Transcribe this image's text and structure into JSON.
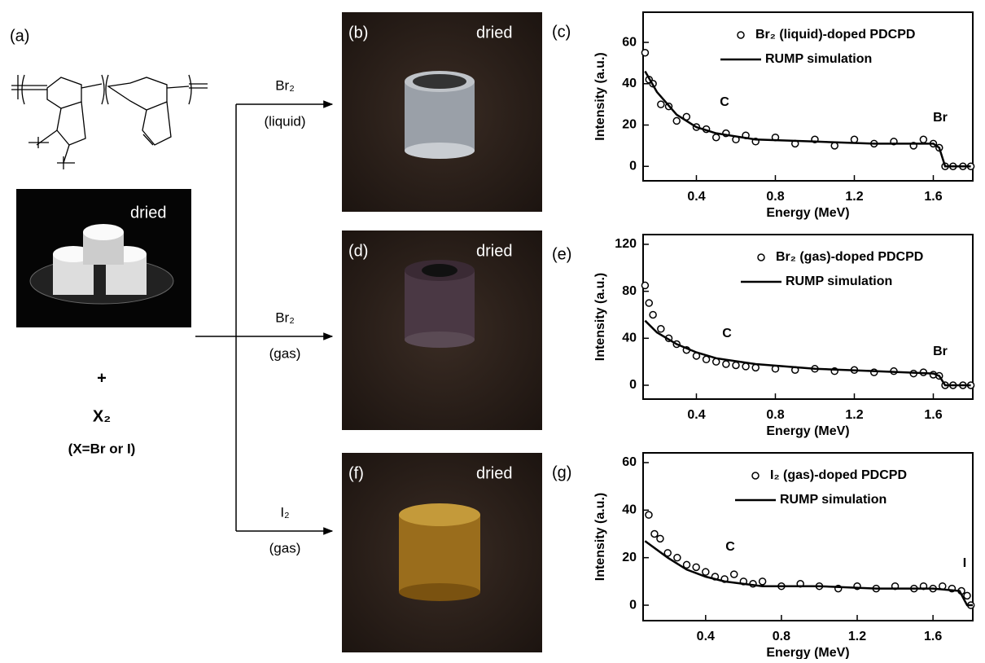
{
  "figure": {
    "panel_a": {
      "label": "(a)",
      "photo_text": "dried",
      "plus": "+",
      "reagent": "X₂",
      "reagent_note": "(X=Br or I)"
    },
    "arrows": [
      {
        "reagent": "Br₂",
        "phase": "(liquid)"
      },
      {
        "reagent": "Br₂",
        "phase": "(gas)"
      },
      {
        "reagent": "I₂",
        "phase": "(gas)"
      }
    ],
    "photos": [
      {
        "label": "(b)",
        "text": "dried"
      },
      {
        "label": "(d)",
        "text": "dried"
      },
      {
        "label": "(f)",
        "text": "dried"
      }
    ]
  },
  "chart_data": [
    {
      "type": "scatter",
      "panel_label": "(c)",
      "xlabel": "Energy (MeV)",
      "ylabel": "Intensity (a.u.)",
      "xlim": [
        0.13,
        1.8
      ],
      "ylim": [
        -7,
        74.6
      ],
      "xticks": [
        0.4,
        0.8,
        1.2,
        1.6
      ],
      "yticks": [
        0,
        20,
        40,
        60
      ],
      "legend": "upper right",
      "series": [
        {
          "name": "Br₂ (liquid)-doped PDCPD",
          "marker": "open-circle",
          "color": "#000000",
          "x": [
            0.14,
            0.16,
            0.18,
            0.22,
            0.26,
            0.3,
            0.35,
            0.4,
            0.45,
            0.5,
            0.55,
            0.6,
            0.65,
            0.7,
            0.8,
            0.9,
            1.0,
            1.1,
            1.2,
            1.3,
            1.4,
            1.5,
            1.55,
            1.6,
            1.63,
            1.66,
            1.7,
            1.75,
            1.79
          ],
          "values": [
            55,
            42,
            40,
            30,
            29,
            22,
            24,
            19,
            18,
            14,
            16,
            13,
            15,
            12,
            14,
            11,
            13,
            10,
            13,
            11,
            12,
            10,
            13,
            11,
            9,
            0,
            0,
            0,
            0
          ]
        },
        {
          "name": "RUMP simulation",
          "marker": "line",
          "color": "#000000",
          "x": [
            0.14,
            0.2,
            0.3,
            0.4,
            0.5,
            0.7,
            1.0,
            1.3,
            1.6,
            1.63,
            1.66,
            1.79
          ],
          "values": [
            46,
            36,
            25,
            19,
            16,
            13,
            12,
            11,
            11,
            9,
            0,
            0
          ]
        }
      ],
      "annotations": [
        "C",
        "Br"
      ]
    },
    {
      "type": "scatter",
      "panel_label": "(e)",
      "xlabel": "Energy (MeV)",
      "ylabel": "Intensity (a.u.)",
      "xlim": [
        0.13,
        1.8
      ],
      "ylim": [
        -11.8,
        128.3
      ],
      "xticks": [
        0.4,
        0.8,
        1.2,
        1.6
      ],
      "yticks": [
        0,
        40,
        80,
        120
      ],
      "legend": "upper right",
      "series": [
        {
          "name": "Br₂ (gas)-doped PDCPD",
          "marker": "open-circle",
          "color": "#000000",
          "x": [
            0.14,
            0.16,
            0.18,
            0.22,
            0.26,
            0.3,
            0.35,
            0.4,
            0.45,
            0.5,
            0.55,
            0.6,
            0.65,
            0.7,
            0.8,
            0.9,
            1.0,
            1.1,
            1.2,
            1.3,
            1.4,
            1.5,
            1.55,
            1.6,
            1.63,
            1.66,
            1.7,
            1.75,
            1.79
          ],
          "values": [
            85,
            70,
            60,
            48,
            40,
            35,
            30,
            25,
            22,
            20,
            18,
            17,
            16,
            15,
            14,
            13,
            14,
            12,
            13,
            11,
            12,
            10,
            11,
            9,
            8,
            0,
            0,
            0,
            0
          ]
        },
        {
          "name": "RUMP simulation",
          "marker": "line",
          "color": "#000000",
          "x": [
            0.14,
            0.2,
            0.3,
            0.4,
            0.5,
            0.7,
            1.0,
            1.3,
            1.6,
            1.63,
            1.66,
            1.79
          ],
          "values": [
            55,
            45,
            35,
            28,
            23,
            18,
            14,
            12,
            10,
            8,
            0,
            0
          ]
        }
      ],
      "annotations": [
        "C",
        "Br"
      ]
    },
    {
      "type": "scatter",
      "panel_label": "(g)",
      "xlabel": "Energy (MeV)",
      "ylabel": "Intensity (a.u.)",
      "xlim": [
        0.07,
        1.81
      ],
      "ylim": [
        -6.5,
        64.1
      ],
      "xticks": [
        0.4,
        0.8,
        1.2,
        1.6
      ],
      "yticks": [
        0,
        20,
        40,
        60
      ],
      "legend": "upper right",
      "series": [
        {
          "name": "I₂ (gas)-doped PDCPD",
          "marker": "open-circle",
          "color": "#000000",
          "x": [
            0.1,
            0.13,
            0.16,
            0.2,
            0.25,
            0.3,
            0.35,
            0.4,
            0.45,
            0.5,
            0.55,
            0.6,
            0.65,
            0.7,
            0.8,
            0.9,
            1.0,
            1.1,
            1.2,
            1.3,
            1.4,
            1.5,
            1.55,
            1.6,
            1.65,
            1.7,
            1.75,
            1.78,
            1.8
          ],
          "values": [
            38,
            30,
            28,
            22,
            20,
            17,
            16,
            14,
            12,
            11,
            13,
            10,
            9,
            10,
            8,
            9,
            8,
            7,
            8,
            7,
            8,
            7,
            8,
            7,
            8,
            7,
            6,
            4,
            0
          ]
        },
        {
          "name": "RUMP simulation",
          "marker": "line",
          "color": "#000000",
          "x": [
            0.08,
            0.2,
            0.3,
            0.4,
            0.5,
            0.7,
            1.0,
            1.3,
            1.6,
            1.74,
            1.78,
            1.81
          ],
          "values": [
            27,
            20,
            15,
            12,
            10,
            8,
            8,
            7,
            7,
            6,
            0,
            0
          ]
        }
      ],
      "annotations": [
        "C",
        "I"
      ]
    }
  ]
}
